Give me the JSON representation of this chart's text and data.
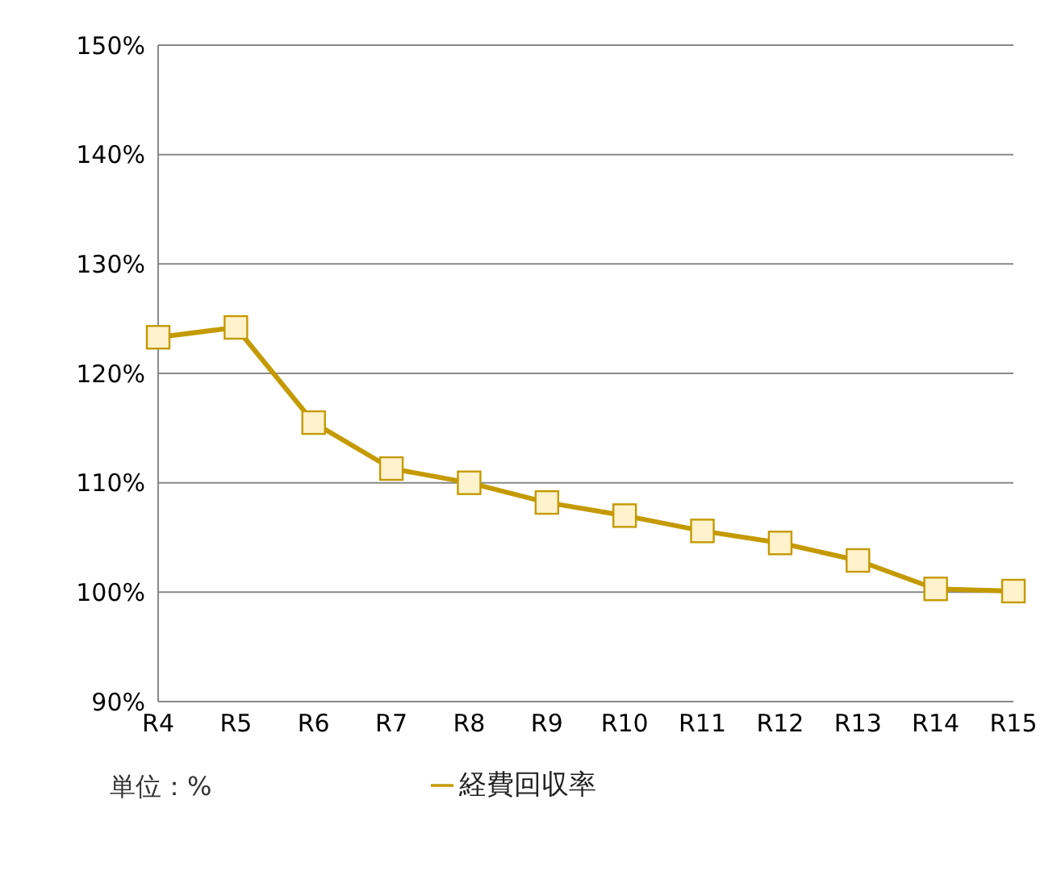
{
  "chart_data": {
    "type": "line",
    "categories": [
      "R4",
      "R5",
      "R6",
      "R7",
      "R8",
      "R9",
      "R10",
      "R11",
      "R12",
      "R13",
      "R14",
      "R15"
    ],
    "series": [
      {
        "name": "経費回収率",
        "color": "#c49a00",
        "values": [
          123.3,
          124.2,
          115.5,
          111.3,
          110.0,
          108.2,
          107.0,
          105.6,
          104.5,
          102.9,
          100.3,
          100.1
        ]
      }
    ],
    "ylim": [
      90,
      150
    ],
    "yticks": [
      {
        "value": 90,
        "label": "90%"
      },
      {
        "value": 100,
        "label": "100%"
      },
      {
        "value": 110,
        "label": "110%"
      },
      {
        "value": 120,
        "label": "120%"
      },
      {
        "value": 130,
        "label": "130%"
      },
      {
        "value": 140,
        "label": "140%"
      },
      {
        "value": 150,
        "label": "150%"
      }
    ],
    "grid": "y",
    "legend": "bottom",
    "marker": "square",
    "line_style": "solid",
    "annotations": [
      "単位：%"
    ]
  }
}
